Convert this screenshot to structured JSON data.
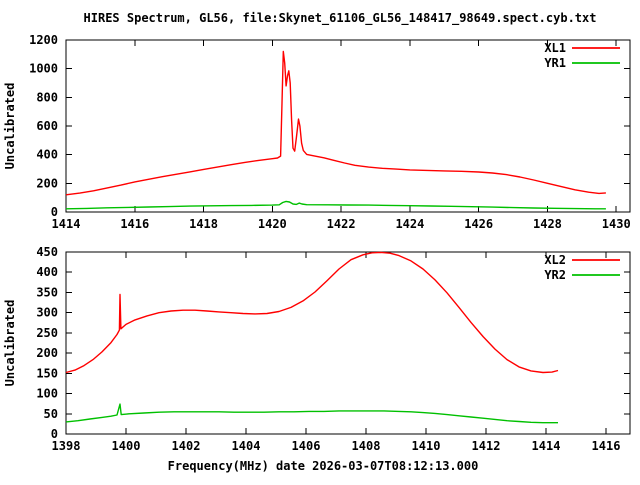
{
  "title": "HIRES Spectrum, GL56, file:Skynet_61106_GL56_148417_98649.spect.cyb.txt",
  "xlabel": "Frequency(MHz) date 2026-03-07T08:12:13.000",
  "colors": {
    "series_red": "#ff0000",
    "series_green": "#00c000",
    "axis": "#000000",
    "background": "#ffffff"
  },
  "chart_data": [
    {
      "type": "line",
      "ylabel": "Uncalibrated",
      "xlim": [
        1414,
        1430.4
      ],
      "ylim": [
        0,
        1200
      ],
      "x_ticks": [
        1414,
        1416,
        1418,
        1420,
        1422,
        1424,
        1426,
        1428,
        1430
      ],
      "y_ticks": [
        0,
        200,
        400,
        600,
        800,
        1000,
        1200
      ],
      "grid": false,
      "legend_position": "top-right",
      "series": [
        {
          "name": "XL1",
          "color": "#ff0000",
          "points": [
            [
              1414,
              120
            ],
            [
              1414.4,
              132
            ],
            [
              1414.8,
              148
            ],
            [
              1415.2,
              168
            ],
            [
              1415.6,
              188
            ],
            [
              1416,
              210
            ],
            [
              1416.4,
              228
            ],
            [
              1416.8,
              246
            ],
            [
              1417.2,
              263
            ],
            [
              1417.6,
              280
            ],
            [
              1418,
              297
            ],
            [
              1418.4,
              313
            ],
            [
              1418.8,
              330
            ],
            [
              1419.2,
              346
            ],
            [
              1419.6,
              360
            ],
            [
              1420,
              372
            ],
            [
              1420.15,
              377
            ],
            [
              1420.24,
              390
            ],
            [
              1420.28,
              760
            ],
            [
              1420.32,
              1120
            ],
            [
              1420.36,
              1040
            ],
            [
              1420.4,
              880
            ],
            [
              1420.44,
              950
            ],
            [
              1420.48,
              985
            ],
            [
              1420.52,
              900
            ],
            [
              1420.56,
              640
            ],
            [
              1420.6,
              445
            ],
            [
              1420.65,
              425
            ],
            [
              1420.7,
              520
            ],
            [
              1420.76,
              648
            ],
            [
              1420.8,
              600
            ],
            [
              1420.85,
              480
            ],
            [
              1420.9,
              430
            ],
            [
              1421,
              402
            ],
            [
              1421.2,
              392
            ],
            [
              1421.5,
              378
            ],
            [
              1421.8,
              360
            ],
            [
              1422.1,
              342
            ],
            [
              1422.4,
              326
            ],
            [
              1422.8,
              313
            ],
            [
              1423.2,
              305
            ],
            [
              1423.6,
              299
            ],
            [
              1424,
              294
            ],
            [
              1424.5,
              290
            ],
            [
              1425,
              287
            ],
            [
              1425.5,
              284
            ],
            [
              1426,
              279
            ],
            [
              1426.4,
              272
            ],
            [
              1426.8,
              261
            ],
            [
              1427.2,
              244
            ],
            [
              1427.6,
              223
            ],
            [
              1428,
              200
            ],
            [
              1428.4,
              177
            ],
            [
              1428.8,
              155
            ],
            [
              1429.2,
              138
            ],
            [
              1429.5,
              130
            ],
            [
              1429.7,
              133
            ]
          ]
        },
        {
          "name": "YR1",
          "color": "#00c000",
          "points": [
            [
              1414,
              22
            ],
            [
              1414.6,
              25
            ],
            [
              1415.2,
              29
            ],
            [
              1415.8,
              32
            ],
            [
              1416.4,
              35
            ],
            [
              1417,
              38
            ],
            [
              1417.6,
              41
            ],
            [
              1418.2,
              43
            ],
            [
              1418.8,
              45
            ],
            [
              1419.4,
              46
            ],
            [
              1420,
              48
            ],
            [
              1420.2,
              50
            ],
            [
              1420.3,
              66
            ],
            [
              1420.4,
              74
            ],
            [
              1420.5,
              70
            ],
            [
              1420.6,
              56
            ],
            [
              1420.7,
              53
            ],
            [
              1420.78,
              62
            ],
            [
              1420.86,
              56
            ],
            [
              1421,
              51
            ],
            [
              1421.6,
              50
            ],
            [
              1422.2,
              49
            ],
            [
              1422.8,
              48
            ],
            [
              1423.4,
              46
            ],
            [
              1424,
              44
            ],
            [
              1424.6,
              42
            ],
            [
              1425.2,
              40
            ],
            [
              1425.8,
              37
            ],
            [
              1426.4,
              34
            ],
            [
              1427,
              31
            ],
            [
              1427.6,
              28
            ],
            [
              1428.2,
              26
            ],
            [
              1428.8,
              24
            ],
            [
              1429.4,
              22
            ],
            [
              1429.7,
              22
            ]
          ]
        }
      ]
    },
    {
      "type": "line",
      "ylabel": "Uncalibrated",
      "xlim": [
        1398,
        1416.8
      ],
      "ylim": [
        0,
        450
      ],
      "x_ticks": [
        1398,
        1400,
        1402,
        1404,
        1406,
        1408,
        1410,
        1412,
        1414,
        1416
      ],
      "y_ticks": [
        0,
        50,
        100,
        150,
        200,
        250,
        300,
        350,
        400,
        450
      ],
      "grid": false,
      "legend_position": "top-right",
      "series": [
        {
          "name": "XL2",
          "color": "#ff0000",
          "points": [
            [
              1398,
              152
            ],
            [
              1398.3,
              158
            ],
            [
              1398.6,
              169
            ],
            [
              1398.9,
              184
            ],
            [
              1399.2,
              203
            ],
            [
              1399.5,
              226
            ],
            [
              1399.7,
              246
            ],
            [
              1399.78,
              257
            ],
            [
              1399.8,
              345
            ],
            [
              1399.83,
              260
            ],
            [
              1400,
              271
            ],
            [
              1400.3,
              282
            ],
            [
              1400.7,
              292
            ],
            [
              1401.1,
              300
            ],
            [
              1401.5,
              304
            ],
            [
              1401.9,
              306
            ],
            [
              1402.3,
              306
            ],
            [
              1402.7,
              304
            ],
            [
              1403.1,
              302
            ],
            [
              1403.5,
              300
            ],
            [
              1403.9,
              298
            ],
            [
              1404.3,
              297
            ],
            [
              1404.7,
              298
            ],
            [
              1405.1,
              303
            ],
            [
              1405.5,
              313
            ],
            [
              1405.9,
              329
            ],
            [
              1406.3,
              351
            ],
            [
              1406.7,
              379
            ],
            [
              1407.1,
              408
            ],
            [
              1407.5,
              431
            ],
            [
              1407.9,
              443
            ],
            [
              1408.2,
              448
            ],
            [
              1408.5,
              449
            ],
            [
              1408.8,
              447
            ],
            [
              1409.1,
              441
            ],
            [
              1409.5,
              428
            ],
            [
              1409.9,
              408
            ],
            [
              1410.3,
              381
            ],
            [
              1410.7,
              349
            ],
            [
              1411.1,
              313
            ],
            [
              1411.5,
              276
            ],
            [
              1411.9,
              241
            ],
            [
              1412.3,
              210
            ],
            [
              1412.7,
              184
            ],
            [
              1413.1,
              166
            ],
            [
              1413.5,
              156
            ],
            [
              1413.9,
              152
            ],
            [
              1414.2,
              153
            ],
            [
              1414.4,
              157
            ]
          ]
        },
        {
          "name": "YR2",
          "color": "#00c000",
          "points": [
            [
              1398,
              30
            ],
            [
              1398.4,
              33
            ],
            [
              1398.8,
              37
            ],
            [
              1399.2,
              41
            ],
            [
              1399.5,
              44
            ],
            [
              1399.7,
              47
            ],
            [
              1399.8,
              74
            ],
            [
              1399.84,
              48
            ],
            [
              1400.1,
              50
            ],
            [
              1400.6,
              52
            ],
            [
              1401.1,
              54
            ],
            [
              1401.6,
              55
            ],
            [
              1402.1,
              55
            ],
            [
              1402.6,
              55
            ],
            [
              1403.1,
              55
            ],
            [
              1403.6,
              54
            ],
            [
              1404.1,
              54
            ],
            [
              1404.6,
              54
            ],
            [
              1405.1,
              55
            ],
            [
              1405.6,
              55
            ],
            [
              1406.1,
              56
            ],
            [
              1406.6,
              56
            ],
            [
              1407.1,
              57
            ],
            [
              1407.6,
              57
            ],
            [
              1408.1,
              57
            ],
            [
              1408.6,
              57
            ],
            [
              1409.1,
              56
            ],
            [
              1409.5,
              55
            ],
            [
              1409.9,
              53
            ],
            [
              1410.3,
              51
            ],
            [
              1410.7,
              48
            ],
            [
              1411.1,
              45
            ],
            [
              1411.5,
              42
            ],
            [
              1411.9,
              39
            ],
            [
              1412.3,
              36
            ],
            [
              1412.7,
              33
            ],
            [
              1413.1,
              31
            ],
            [
              1413.5,
              29
            ],
            [
              1413.9,
              28
            ],
            [
              1414.4,
              28
            ]
          ]
        }
      ]
    }
  ]
}
